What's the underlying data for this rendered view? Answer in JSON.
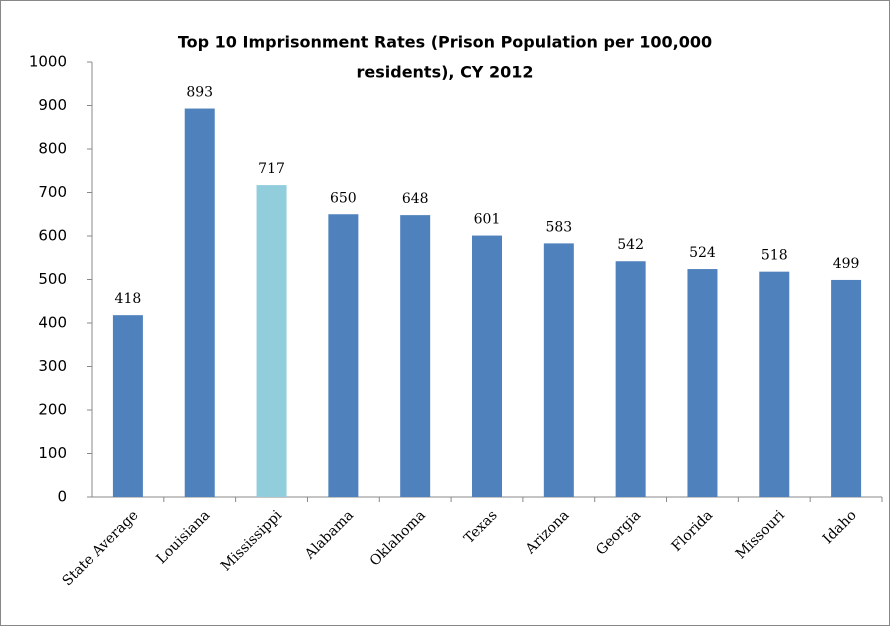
{
  "chart_data": {
    "type": "bar",
    "title": [
      "Top 10 Imprisonment Rates (Prison Population per 100,000",
      "residents), CY 2012"
    ],
    "categories": [
      "State Average",
      "Louisiana",
      "Mississippi",
      "Alabama",
      "Oklahoma",
      "Texas",
      "Arizona",
      "Georgia",
      "Florida",
      "Missouri",
      "Idaho"
    ],
    "values": [
      418,
      893,
      717,
      650,
      648,
      601,
      583,
      542,
      524,
      518,
      499
    ],
    "colors": [
      "#4f81bd",
      "#4f81bd",
      "#92cddc",
      "#4f81bd",
      "#4f81bd",
      "#4f81bd",
      "#4f81bd",
      "#4f81bd",
      "#4f81bd",
      "#4f81bd",
      "#4f81bd"
    ],
    "ylim": [
      0,
      1000
    ],
    "yticks": [
      0,
      100,
      200,
      300,
      400,
      500,
      600,
      700,
      800,
      900,
      1000
    ],
    "grid": false
  }
}
